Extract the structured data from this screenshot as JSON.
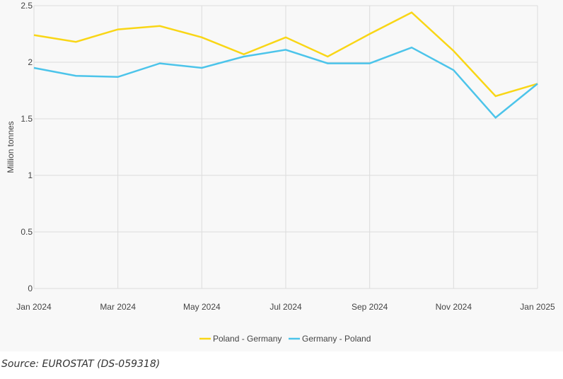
{
  "chart_data": {
    "type": "line",
    "title": "",
    "xlabel": "",
    "ylabel": "Million tonnes",
    "ylim": [
      0,
      2.5
    ],
    "yticks": [
      0,
      0.5,
      1,
      1.5,
      2,
      2.5
    ],
    "ytick_labels": [
      "0",
      "0.5",
      "1",
      "1.5",
      "2",
      "2.5"
    ],
    "x": [
      "Jan 2024",
      "Feb 2024",
      "Mar 2024",
      "Apr 2024",
      "May 2024",
      "Jun 2024",
      "Jul 2024",
      "Aug 2024",
      "Sep 2024",
      "Oct 2024",
      "Nov 2024",
      "Dec 2024",
      "Jan 2025"
    ],
    "xtick_labels": [
      "Jan 2024",
      "Mar 2024",
      "May 2024",
      "Jul 2024",
      "Sep 2024",
      "Nov 2024",
      "Jan 2025"
    ],
    "xtick_index": [
      0,
      2,
      4,
      6,
      8,
      10,
      12
    ],
    "grid": true,
    "legend_position": "bottom",
    "series": [
      {
        "name": "Poland - Germany",
        "color": "#f9d616",
        "values": [
          2.24,
          2.18,
          2.29,
          2.32,
          2.22,
          2.07,
          2.22,
          2.05,
          2.25,
          2.44,
          2.1,
          1.7,
          1.81
        ]
      },
      {
        "name": "Germany - Poland",
        "color": "#4cc4ea",
        "values": [
          1.95,
          1.88,
          1.87,
          1.99,
          1.95,
          2.05,
          2.11,
          1.99,
          1.99,
          2.13,
          1.93,
          1.51,
          1.81
        ]
      }
    ]
  },
  "source": "Source: EUROSTAT (DS-059318)"
}
